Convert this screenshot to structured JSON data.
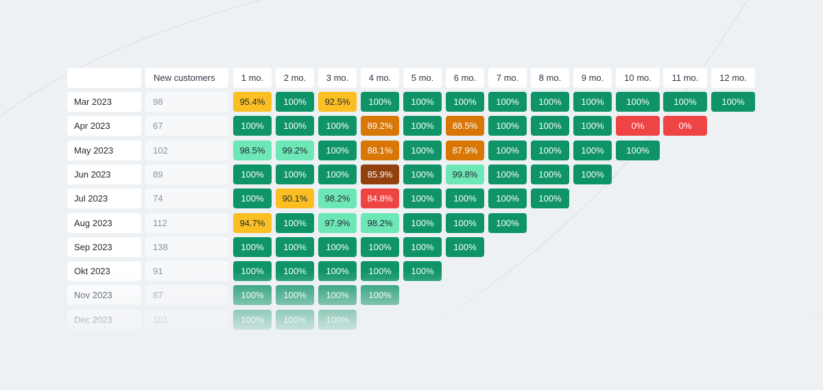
{
  "chart_data": {
    "type": "heatmap",
    "corner_label": "",
    "customers_header": "New customers",
    "columns": [
      "1 mo.",
      "2 mo.",
      "3 mo.",
      "4 mo.",
      "5 mo.",
      "6 mo.",
      "7 mo.",
      "8 mo.",
      "9 mo.",
      "10 mo.",
      "11 mo.",
      "12 mo."
    ],
    "rows": [
      {
        "cohort": "Mar 2023",
        "customers": "98",
        "values": [
          "95.4%",
          "100%",
          "92.5%",
          "100%",
          "100%",
          "100%",
          "100%",
          "100%",
          "100%",
          "100%",
          "100%",
          "100%"
        ]
      },
      {
        "cohort": "Apr 2023",
        "customers": "67",
        "values": [
          "100%",
          "100%",
          "100%",
          "89.2%",
          "100%",
          "88.5%",
          "100%",
          "100%",
          "100%",
          "0%",
          "0%"
        ]
      },
      {
        "cohort": "May 2023",
        "customers": "102",
        "values": [
          "98.5%",
          "99.2%",
          "100%",
          "88.1%",
          "100%",
          "87.9%",
          "100%",
          "100%",
          "100%",
          "100%"
        ]
      },
      {
        "cohort": "Jun 2023",
        "customers": "89",
        "values": [
          "100%",
          "100%",
          "100%",
          "85.9%",
          "100%",
          "99.8%",
          "100%",
          "100%",
          "100%"
        ]
      },
      {
        "cohort": "Jul 2023",
        "customers": "74",
        "values": [
          "100%",
          "90.1%",
          "98.2%",
          "84.8%",
          "100%",
          "100%",
          "100%",
          "100%"
        ]
      },
      {
        "cohort": "Aug 2023",
        "customers": "112",
        "values": [
          "94.7%",
          "100%",
          "97.9%",
          "98.2%",
          "100%",
          "100%",
          "100%"
        ]
      },
      {
        "cohort": "Sep 2023",
        "customers": "138",
        "values": [
          "100%",
          "100%",
          "100%",
          "100%",
          "100%",
          "100%"
        ]
      },
      {
        "cohort": "Okt 2023",
        "customers": "91",
        "values": [
          "100%",
          "100%",
          "100%",
          "100%",
          "100%"
        ]
      },
      {
        "cohort": "Nov 2023",
        "customers": "87",
        "values": [
          "100%",
          "100%",
          "100%",
          "100%"
        ]
      },
      {
        "cohort": "Dec 2023",
        "customers": "101",
        "values": [
          "100%",
          "100%",
          "100%"
        ]
      }
    ],
    "color_scale": [
      {
        "min": 100,
        "bg": "#0e9467",
        "fg": "#ffffff"
      },
      {
        "min": 97,
        "bg": "#6ee7b7",
        "fg": "#1f2630"
      },
      {
        "min": 90,
        "bg": "#fbbf24",
        "fg": "#1f2630"
      },
      {
        "min": 87,
        "bg": "#d97706",
        "fg": "#ffffff"
      },
      {
        "min": 85.5,
        "bg": "#92400e",
        "fg": "#ffffff"
      },
      {
        "min": 0,
        "bg": "#ef4444",
        "fg": "#ffffff"
      }
    ]
  }
}
